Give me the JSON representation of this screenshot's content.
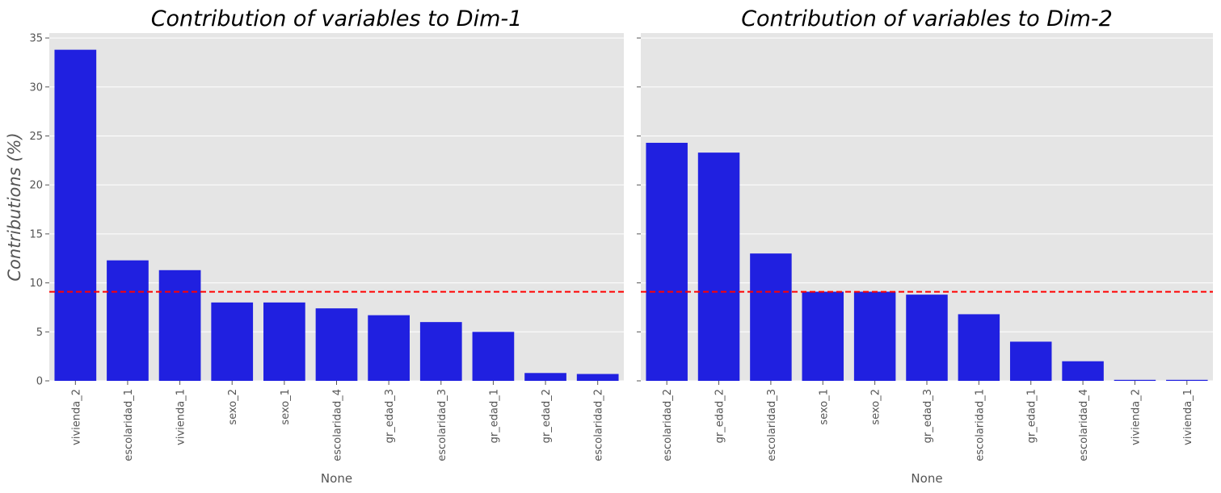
{
  "colors": {
    "bar": "#2020e0",
    "threshold": "#ff0000",
    "panel_bg": "#e5e5e5",
    "grid": "#ffffff"
  },
  "chart_data": [
    {
      "type": "bar",
      "title": "Contribution of variables to Dim-1",
      "xlabel": "None",
      "ylabel": "Contributions (%)",
      "ylim": [
        0,
        35.5
      ],
      "yticks": [
        0,
        5,
        10,
        15,
        20,
        25,
        30,
        35
      ],
      "grid": true,
      "threshold": 9.09,
      "categories": [
        "vivienda_2",
        "escolaridad_1",
        "vivienda_1",
        "sexo_2",
        "sexo_1",
        "escolaridad_4",
        "gr_edad_3",
        "escolaridad_3",
        "gr_edad_1",
        "gr_edad_2",
        "escolaridad_2"
      ],
      "values": [
        33.8,
        12.3,
        11.3,
        8.0,
        8.0,
        7.4,
        6.7,
        6.0,
        5.0,
        0.8,
        0.7
      ]
    },
    {
      "type": "bar",
      "title": "Contribution of variables to Dim-2",
      "xlabel": "None",
      "ylabel": "",
      "ylim": [
        0,
        35.5
      ],
      "yticks": [
        0,
        5,
        10,
        15,
        20,
        25,
        30,
        35
      ],
      "grid": true,
      "threshold": 9.09,
      "categories": [
        "escolaridad_2",
        "gr_edad_2",
        "escolaridad_3",
        "sexo_1",
        "sexo_2",
        "gr_edad_3",
        "escolaridad_1",
        "gr_edad_1",
        "escolaridad_4",
        "vivienda_2",
        "vivienda_1"
      ],
      "values": [
        24.3,
        23.3,
        13.0,
        9.1,
        9.1,
        8.8,
        6.8,
        4.0,
        2.0,
        0.1,
        0.1
      ]
    }
  ]
}
